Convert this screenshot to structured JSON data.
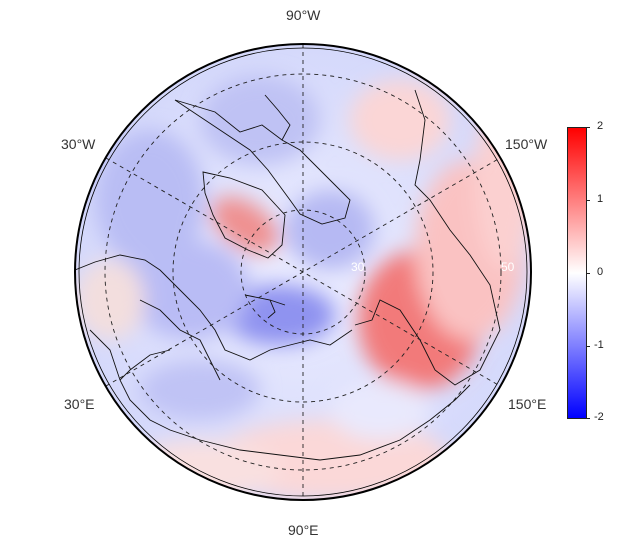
{
  "map": {
    "projection": "north-polar-stereographic",
    "colors": {
      "high": "#ff0000",
      "mid": "#ffffff",
      "low": "#0000ff"
    },
    "meridian_labels": [
      {
        "id": "top",
        "text": "90°W"
      },
      {
        "id": "upper-left",
        "text": "30°W"
      },
      {
        "id": "upper-right",
        "text": "150°W"
      },
      {
        "id": "lower-left",
        "text": "30°E"
      },
      {
        "id": "lower-right",
        "text": "150°E"
      },
      {
        "id": "bottom",
        "text": "90°E"
      }
    ],
    "latitude_labels": [
      {
        "id": "lat-inner",
        "text": "30"
      },
      {
        "id": "lat-outer",
        "text": "50"
      }
    ],
    "colorbar": {
      "max": 2,
      "min": -2,
      "ticks": [
        "2",
        "1",
        "0",
        "-1",
        "-2"
      ]
    }
  }
}
